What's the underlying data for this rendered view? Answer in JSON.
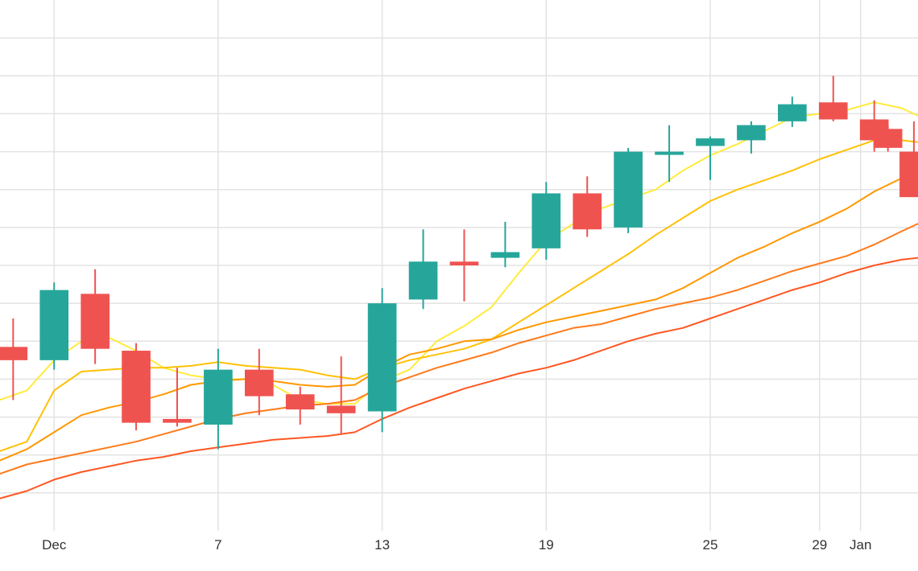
{
  "chart_data": {
    "type": "candlestick",
    "title": "",
    "xlabel": "",
    "ylabel": "",
    "x_tick_labels": [
      {
        "label": "Dec",
        "day": 1
      },
      {
        "label": "7",
        "day": 7
      },
      {
        "label": "13",
        "day": 13
      },
      {
        "label": "19",
        "day": 19
      },
      {
        "label": "25",
        "day": 25
      },
      {
        "label": "29",
        "day": 29
      },
      {
        "label": "Jan",
        "day": 30.5
      }
    ],
    "x_range": [
      -0.98,
      32.6
    ],
    "y_range": [
      0,
      14
    ],
    "y_gridlines": [
      1,
      2,
      3,
      4,
      5,
      6,
      7,
      8,
      9,
      10,
      11,
      12,
      13
    ],
    "vertical_gridlines_at_days": [
      1,
      7,
      13,
      19,
      25,
      29,
      30.5
    ],
    "up_color": "#26a69a",
    "down_color": "#ef5350",
    "candles": [
      {
        "day": -0.5,
        "open": 4.85,
        "high": 5.6,
        "low": 3.45,
        "close": 4.5
      },
      {
        "day": 1,
        "open": 4.5,
        "high": 6.55,
        "low": 4.25,
        "close": 6.35
      },
      {
        "day": 2.5,
        "open": 6.25,
        "high": 6.9,
        "low": 4.4,
        "close": 4.8
      },
      {
        "day": 4,
        "open": 4.75,
        "high": 4.95,
        "low": 2.65,
        "close": 2.85
      },
      {
        "day": 5.5,
        "open": 2.95,
        "high": 4.3,
        "low": 2.75,
        "close": 2.85
      },
      {
        "day": 7,
        "open": 2.8,
        "high": 4.8,
        "low": 2.15,
        "close": 4.25
      },
      {
        "day": 8.5,
        "open": 4.25,
        "high": 4.8,
        "low": 3.05,
        "close": 3.55
      },
      {
        "day": 10,
        "open": 3.6,
        "high": 3.8,
        "low": 2.8,
        "close": 3.2
      },
      {
        "day": 11.5,
        "open": 3.3,
        "high": 4.6,
        "low": 2.55,
        "close": 3.1
      },
      {
        "day": 13,
        "open": 3.15,
        "high": 6.4,
        "low": 2.6,
        "close": 6.0
      },
      {
        "day": 14.5,
        "open": 6.1,
        "high": 7.95,
        "low": 5.85,
        "close": 7.1
      },
      {
        "day": 16,
        "open": 7.1,
        "high": 7.95,
        "low": 6.05,
        "close": 7.0
      },
      {
        "day": 17.5,
        "open": 7.2,
        "high": 8.15,
        "low": 6.95,
        "close": 7.35
      },
      {
        "day": 19,
        "open": 7.45,
        "high": 9.2,
        "low": 7.15,
        "close": 8.9
      },
      {
        "day": 20.5,
        "open": 8.9,
        "high": 9.35,
        "low": 7.75,
        "close": 7.95
      },
      {
        "day": 22,
        "open": 8.0,
        "high": 10.1,
        "low": 7.85,
        "close": 10.0
      },
      {
        "day": 23.5,
        "open": 10.0,
        "high": 10.7,
        "low": 9.2,
        "close": 10.0
      },
      {
        "day": 25,
        "open": 10.15,
        "high": 10.4,
        "low": 9.25,
        "close": 10.35
      },
      {
        "day": 26.5,
        "open": 10.3,
        "high": 10.8,
        "low": 9.95,
        "close": 10.7
      },
      {
        "day": 28,
        "open": 10.8,
        "high": 11.45,
        "low": 10.65,
        "close": 11.25
      },
      {
        "day": 29.5,
        "open": 11.3,
        "high": 12.0,
        "low": 10.8,
        "close": 10.85
      },
      {
        "day": 31,
        "open": 10.85,
        "high": 11.35,
        "low": 10.0,
        "close": 10.3
      },
      {
        "day": 31.5,
        "open": 10.6,
        "high": 10.7,
        "low": 10.0,
        "close": 10.1
      },
      {
        "day": 32.45,
        "open": 10.0,
        "high": 10.8,
        "low": 8.85,
        "close": 8.8
      }
    ],
    "series": [
      {
        "color": "#ffeb3b",
        "x": [
          -1,
          0,
          1,
          2,
          3,
          4,
          5,
          6,
          7,
          8,
          9,
          10,
          11,
          12,
          13,
          14,
          15,
          16,
          17,
          18,
          19,
          20,
          21,
          22,
          23,
          24,
          25,
          26,
          27,
          28,
          29,
          30,
          31,
          32,
          32.6
        ],
        "values": [
          3.45,
          3.7,
          4.5,
          5.0,
          5.1,
          4.75,
          4.3,
          4.1,
          4.0,
          4.0,
          3.85,
          3.45,
          3.35,
          3.35,
          3.95,
          4.25,
          5.0,
          5.4,
          5.9,
          6.8,
          7.65,
          8.1,
          8.5,
          8.75,
          9.0,
          9.5,
          9.9,
          10.2,
          10.55,
          10.9,
          11.0,
          11.1,
          11.3,
          11.15,
          10.95
        ]
      },
      {
        "color": "#ffc107",
        "x": [
          -1,
          0,
          1,
          2,
          3,
          4,
          5,
          6,
          7,
          8,
          9,
          10,
          11,
          12,
          13,
          14,
          15,
          16,
          17,
          18,
          19,
          20,
          21,
          22,
          23,
          24,
          25,
          26,
          27,
          28,
          29,
          30,
          31,
          32,
          32.6
        ],
        "values": [
          2.1,
          2.35,
          3.7,
          4.2,
          4.25,
          4.3,
          4.3,
          4.35,
          4.45,
          4.35,
          4.3,
          4.25,
          4.1,
          4.0,
          4.3,
          4.5,
          4.65,
          4.8,
          5.05,
          5.5,
          5.95,
          6.4,
          6.85,
          7.3,
          7.8,
          8.25,
          8.7,
          9.0,
          9.25,
          9.5,
          9.8,
          10.05,
          10.3,
          10.3,
          10.25
        ]
      },
      {
        "color": "#ff9800",
        "x": [
          -1,
          0,
          1,
          2,
          3,
          4,
          5,
          6,
          7,
          8,
          9,
          10,
          11,
          12,
          13,
          14,
          15,
          16,
          17,
          18,
          19,
          20,
          21,
          22,
          23,
          24,
          25,
          26,
          27,
          28,
          29,
          30,
          31,
          32,
          32.6
        ],
        "values": [
          1.85,
          2.15,
          2.6,
          3.05,
          3.25,
          3.4,
          3.6,
          3.85,
          3.95,
          4.0,
          3.95,
          3.85,
          3.8,
          3.85,
          4.3,
          4.65,
          4.8,
          5.0,
          5.05,
          5.3,
          5.5,
          5.65,
          5.8,
          5.95,
          6.1,
          6.4,
          6.8,
          7.2,
          7.5,
          7.85,
          8.15,
          8.5,
          8.95,
          9.3,
          9.55
        ]
      },
      {
        "color": "#ff7a1a",
        "x": [
          -1,
          0,
          1,
          2,
          3,
          4,
          5,
          6,
          7,
          8,
          9,
          10,
          11,
          12,
          13,
          14,
          15,
          16,
          17,
          18,
          19,
          20,
          21,
          22,
          23,
          24,
          25,
          26,
          27,
          28,
          29,
          30,
          31,
          32,
          32.6
        ],
        "values": [
          1.5,
          1.75,
          1.9,
          2.05,
          2.2,
          2.35,
          2.55,
          2.75,
          2.95,
          3.1,
          3.2,
          3.3,
          3.35,
          3.45,
          3.8,
          4.05,
          4.3,
          4.5,
          4.7,
          4.95,
          5.15,
          5.35,
          5.45,
          5.65,
          5.85,
          6.0,
          6.15,
          6.35,
          6.6,
          6.85,
          7.05,
          7.25,
          7.55,
          7.9,
          8.1
        ]
      },
      {
        "color": "#ff5722",
        "x": [
          -1,
          0,
          1,
          2,
          3,
          4,
          5,
          6,
          7,
          8,
          9,
          10,
          11,
          12,
          13,
          14,
          15,
          16,
          17,
          18,
          19,
          20,
          21,
          22,
          23,
          24,
          25,
          26,
          27,
          28,
          29,
          30,
          31,
          32,
          32.6
        ],
        "values": [
          0.85,
          1.05,
          1.35,
          1.55,
          1.7,
          1.85,
          1.95,
          2.1,
          2.2,
          2.3,
          2.4,
          2.45,
          2.5,
          2.6,
          2.95,
          3.25,
          3.5,
          3.75,
          3.95,
          4.15,
          4.3,
          4.5,
          4.75,
          5.0,
          5.2,
          5.35,
          5.6,
          5.85,
          6.1,
          6.35,
          6.55,
          6.8,
          7.0,
          7.15,
          7.2
        ]
      }
    ]
  }
}
